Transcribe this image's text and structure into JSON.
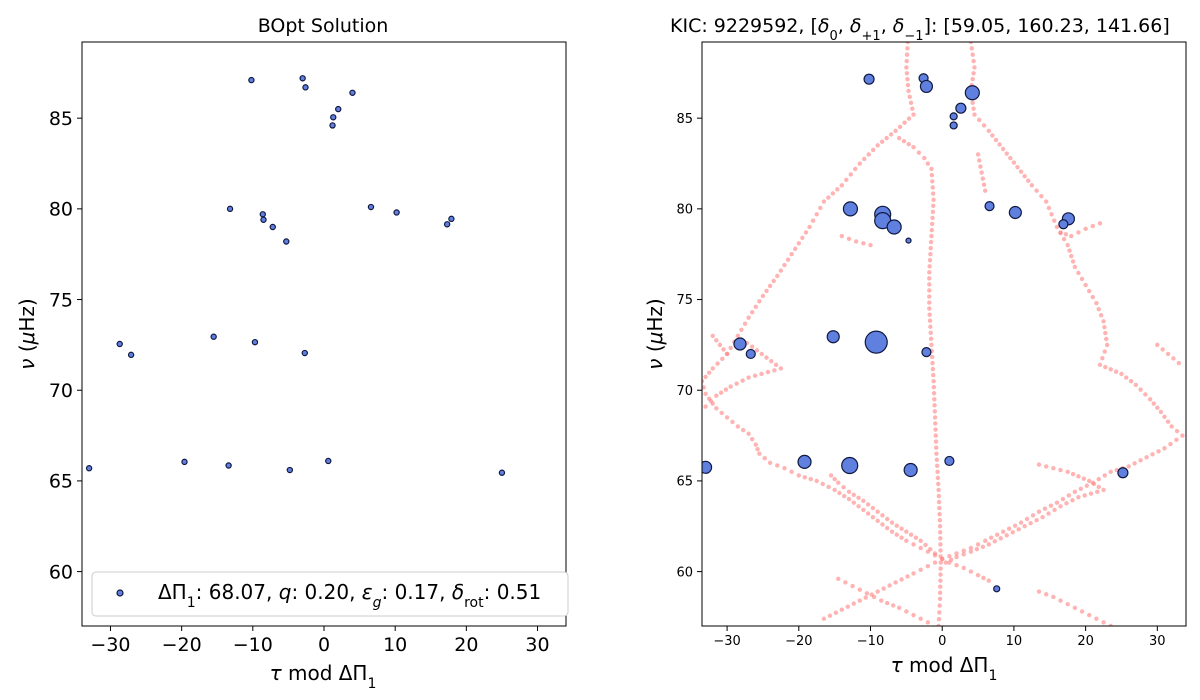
{
  "chart_data": [
    {
      "type": "scatter",
      "title": "BOpt Solution",
      "xlabel": "τ mod ΔΠ₁",
      "ylabel": "ν (μHz)",
      "xlim": [
        -34,
        34
      ],
      "ylim": [
        57,
        89.2
      ],
      "xticks": [
        -30,
        -20,
        -10,
        0,
        10,
        20,
        30
      ],
      "yticks": [
        60,
        65,
        70,
        75,
        80,
        85
      ],
      "xtick_labels": [
        "−30",
        "−20",
        "−10",
        "0",
        "10",
        "20",
        "30"
      ],
      "ytick_labels": [
        "60",
        "65",
        "70",
        "75",
        "80",
        "85"
      ],
      "legend": {
        "placement": "lower-right",
        "label_html": "ΔΠ<tspan baseline-shift=\"sub\" font-size=\"70%\">1</tspan>: 68.07, <tspan font-style=\"italic\">q</tspan>: 0.20, <tspan font-style=\"italic\">ε</tspan><tspan baseline-shift=\"sub\" font-size=\"70%\" font-style=\"italic\">g</tspan>: 0.17, <tspan font-style=\"italic\">δ</tspan><tspan baseline-shift=\"sub\" font-size=\"70%\">rot</tspan>: 0.51"
      },
      "colors": {
        "marker": "#6080e0",
        "edge": "#101840"
      },
      "series": [
        {
          "points": [
            [
              -10.2,
              87.1
            ],
            [
              -3.0,
              87.2
            ],
            [
              -2.6,
              86.7
            ],
            [
              4.0,
              86.4
            ],
            [
              2.0,
              85.5
            ],
            [
              1.3,
              85.05
            ],
            [
              1.2,
              84.6
            ],
            [
              -13.2,
              80.0
            ],
            [
              -8.6,
              79.7
            ],
            [
              -8.5,
              79.4
            ],
            [
              -7.2,
              79.0
            ],
            [
              -5.3,
              78.2
            ],
            [
              6.6,
              80.1
            ],
            [
              10.2,
              79.8
            ],
            [
              17.9,
              79.45
            ],
            [
              17.3,
              79.15
            ],
            [
              -28.7,
              72.55
            ],
            [
              -27.1,
              71.95
            ],
            [
              -15.5,
              72.95
            ],
            [
              -9.7,
              72.65
            ],
            [
              -2.7,
              72.05
            ],
            [
              -33.0,
              65.7
            ],
            [
              -19.6,
              66.05
            ],
            [
              -13.4,
              65.85
            ],
            [
              -4.8,
              65.6
            ],
            [
              0.6,
              66.1
            ],
            [
              25.0,
              65.45
            ]
          ]
        }
      ]
    },
    {
      "type": "scatter",
      "title": "KIC: 9229592, [δ₀, δ₊₁, δ₋₁]: [59.05, 160.23, 141.66]",
      "xlabel": "τ mod ΔΠ₁",
      "ylabel": "ν (μHz)",
      "xlim": [
        -33.5,
        34
      ],
      "ylim": [
        57,
        89.2
      ],
      "xticks": [
        -30,
        -20,
        -10,
        0,
        10,
        20,
        30
      ],
      "yticks": [
        60,
        65,
        70,
        75,
        80,
        85
      ],
      "xtick_labels": [
        "−30",
        "−20",
        "−10",
        "0",
        "10",
        "20",
        "30"
      ],
      "ytick_labels": [
        "60",
        "65",
        "70",
        "75",
        "80",
        "85"
      ],
      "colors": {
        "observed": "#6080e0",
        "observed_edge": "#101840",
        "model": "#ff8080"
      },
      "series": [
        {
          "role": "observed",
          "points": [
            [
              -10.2,
              87.15,
              5
            ],
            [
              -2.6,
              87.2,
              4.5
            ],
            [
              -2.2,
              86.75,
              6
            ],
            [
              4.2,
              86.4,
              7
            ],
            [
              2.6,
              85.55,
              5
            ],
            [
              1.6,
              85.1,
              3.5
            ],
            [
              1.6,
              84.6,
              3.5
            ],
            [
              -12.8,
              80.0,
              7
            ],
            [
              -8.3,
              79.7,
              8
            ],
            [
              -8.3,
              79.35,
              8
            ],
            [
              -6.7,
              79.0,
              7
            ],
            [
              -4.7,
              78.25,
              2.5
            ],
            [
              6.6,
              80.15,
              4.5
            ],
            [
              10.2,
              79.8,
              6
            ],
            [
              17.6,
              79.45,
              6
            ],
            [
              16.9,
              79.15,
              4.5
            ],
            [
              -28.2,
              72.55,
              6
            ],
            [
              -26.7,
              72.0,
              4.5
            ],
            [
              -15.2,
              72.95,
              6
            ],
            [
              -9.2,
              72.65,
              11
            ],
            [
              -2.2,
              72.1,
              4.5
            ],
            [
              -33.0,
              65.75,
              6
            ],
            [
              -19.2,
              66.05,
              6.5
            ],
            [
              -12.9,
              65.85,
              8
            ],
            [
              -4.4,
              65.6,
              6.5
            ],
            [
              1.0,
              66.1,
              4.5
            ],
            [
              25.2,
              65.45,
              5
            ],
            [
              7.6,
              59.05,
              3
            ]
          ]
        },
        {
          "role": "model",
          "branches": [
            [
              [
                -4.8,
                89.2
              ],
              [
                -5.0,
                87.8
              ],
              [
                -4.7,
                86.5
              ],
              [
                -4.0,
                85.2
              ],
              [
                -6.5,
                84.3
              ],
              [
                -9.0,
                83.5
              ],
              [
                -11.5,
                82.5
              ],
              [
                -14.0,
                81.3
              ],
              [
                -16.5,
                80.4
              ],
              [
                -18.5,
                79.0
              ],
              [
                -21.0,
                77.5
              ],
              [
                -23.0,
                76.3
              ],
              [
                -25.0,
                75.2
              ],
              [
                -27.0,
                74.0
              ],
              [
                -28.5,
                73.0
              ],
              [
                -30.0,
                72.0
              ],
              [
                -32.0,
                71.2
              ],
              [
                -33.5,
                70.5
              ],
              [
                -33.0,
                69.8
              ],
              [
                -31.5,
                69.0
              ],
              [
                -30.0,
                68.5
              ],
              [
                -28.5,
                68.0
              ],
              [
                -27.0,
                67.6
              ],
              [
                -26.0,
                67.0
              ],
              [
                -25.5,
                66.5
              ],
              [
                -24.0,
                66.0
              ],
              [
                -22.0,
                65.7
              ],
              [
                -20.0,
                65.3
              ],
              [
                -17.5,
                65.0
              ],
              [
                -15.0,
                64.5
              ],
              [
                -13.0,
                64.0
              ],
              [
                -11.0,
                63.4
              ],
              [
                -9.0,
                62.8
              ],
              [
                -7.0,
                62.2
              ],
              [
                -5.0,
                61.7
              ],
              [
                -3.0,
                61.3
              ],
              [
                -1.0,
                60.9
              ],
              [
                1.0,
                60.5
              ],
              [
                3.0,
                60.2
              ],
              [
                5.0,
                59.8
              ],
              [
                6.5,
                59.5
              ]
            ],
            [
              [
                4.0,
                89.2
              ],
              [
                4.5,
                87.8
              ],
              [
                4.0,
                86.5
              ],
              [
                4.5,
                85.2
              ],
              [
                6.5,
                84.3
              ],
              [
                8.5,
                83.3
              ],
              [
                10.5,
                82.3
              ],
              [
                12.5,
                81.3
              ],
              [
                14.5,
                80.4
              ],
              [
                16.0,
                79.0
              ],
              [
                17.5,
                78.0
              ],
              [
                18.5,
                76.8
              ],
              [
                20.0,
                75.8
              ],
              [
                21.5,
                74.8
              ],
              [
                22.5,
                73.8
              ],
              [
                23.0,
                72.5
              ],
              [
                22.0,
                71.4
              ],
              [
                25.0,
                70.9
              ],
              [
                27.0,
                70.3
              ],
              [
                29.0,
                69.5
              ],
              [
                30.5,
                68.8
              ],
              [
                32.0,
                68.0
              ],
              [
                33.5,
                67.5
              ],
              [
                31.0,
                66.8
              ],
              [
                28.5,
                66.3
              ],
              [
                26.0,
                65.8
              ],
              [
                23.5,
                65.5
              ],
              [
                21.0,
                64.9
              ],
              [
                18.5,
                64.4
              ],
              [
                16.0,
                63.8
              ],
              [
                13.5,
                63.3
              ],
              [
                11.0,
                62.7
              ],
              [
                8.5,
                62.2
              ],
              [
                6.0,
                61.7
              ],
              [
                4.0,
                61.3
              ],
              [
                2.0,
                61.0
              ],
              [
                0.0,
                60.7
              ],
              [
                -2.0,
                60.3
              ],
              [
                -4.0,
                59.9
              ],
              [
                -6.5,
                59.4
              ],
              [
                -9.0,
                58.9
              ],
              [
                -11.5,
                58.4
              ],
              [
                -14.0,
                57.9
              ],
              [
                -16.5,
                57.4
              ]
            ],
            [
              [
                -6.0,
                83.9
              ],
              [
                -4.0,
                83.4
              ],
              [
                -2.5,
                82.8
              ],
              [
                -1.5,
                82.2
              ],
              [
                -1.2,
                80.5
              ],
              [
                -1.5,
                78.5
              ],
              [
                -1.8,
                76.5
              ],
              [
                -1.8,
                74.5
              ],
              [
                -1.5,
                72.5
              ],
              [
                -1.2,
                70.5
              ],
              [
                -1.0,
                68.5
              ],
              [
                -0.8,
                66.5
              ],
              [
                -0.5,
                64.5
              ],
              [
                -0.3,
                62.5
              ],
              [
                -0.2,
                60.5
              ],
              [
                -0.3,
                58.5
              ],
              [
                -0.5,
                57.0
              ]
            ],
            [
              [
                -28.0,
                72.8
              ],
              [
                -26.5,
                72.4
              ],
              [
                -24.5,
                71.8
              ],
              [
                -22.5,
                71.2
              ],
              [
                -27.0,
                70.7
              ],
              [
                -29.5,
                70.2
              ],
              [
                -31.5,
                69.7
              ],
              [
                -33.0,
                69.1
              ]
            ],
            [
              [
                -15.5,
                65.3
              ],
              [
                -14.5,
                64.9
              ],
              [
                -13.0,
                64.4
              ],
              [
                -11.0,
                63.9
              ],
              [
                -9.0,
                63.3
              ],
              [
                -7.0,
                62.7
              ],
              [
                -5.0,
                62.2
              ],
              [
                -3.0,
                61.7
              ],
              [
                -1.0,
                61.0
              ]
            ],
            [
              [
                13.5,
                65.9
              ],
              [
                15.5,
                65.7
              ],
              [
                17.5,
                65.5
              ],
              [
                20.5,
                65.0
              ],
              [
                22.5,
                64.5
              ],
              [
                19.0,
                64.1
              ],
              [
                16.5,
                63.6
              ],
              [
                14.0,
                63.0
              ],
              [
                11.5,
                62.5
              ],
              [
                9.0,
                62.0
              ],
              [
                6.5,
                61.5
              ],
              [
                4.0,
                61.1
              ],
              [
                2.0,
                60.8
              ],
              [
                0.5,
                60.5
              ]
            ],
            [
              [
                -14.5,
                59.6
              ],
              [
                -12.5,
                59.2
              ],
              [
                -10.5,
                58.8
              ],
              [
                -8.5,
                58.4
              ],
              [
                -6.0,
                58.0
              ],
              [
                -4.0,
                57.6
              ],
              [
                -2.0,
                57.2
              ]
            ],
            [
              [
                13.5,
                58.9
              ],
              [
                15.5,
                58.6
              ],
              [
                17.5,
                58.2
              ],
              [
                19.5,
                57.8
              ],
              [
                21.5,
                57.4
              ],
              [
                23.5,
                57.0
              ]
            ],
            [
              [
                22.0,
                79.2
              ],
              [
                20.0,
                78.9
              ],
              [
                18.0,
                78.5
              ],
              [
                16.5,
                78.7
              ]
            ],
            [
              [
                -30.0,
                72.0
              ],
              [
                -31.0,
                72.5
              ],
              [
                -32.0,
                73.0
              ]
            ],
            [
              [
                30.0,
                72.5
              ],
              [
                31.5,
                72.0
              ],
              [
                33.0,
                71.5
              ]
            ],
            [
              [
                6.0,
                81.0
              ],
              [
                5.5,
                82.0
              ],
              [
                5.0,
                83.0
              ]
            ],
            [
              [
                -14.0,
                78.5
              ],
              [
                -12.0,
                78.2
              ],
              [
                -10.0,
                78.0
              ]
            ]
          ]
        }
      ]
    }
  ]
}
